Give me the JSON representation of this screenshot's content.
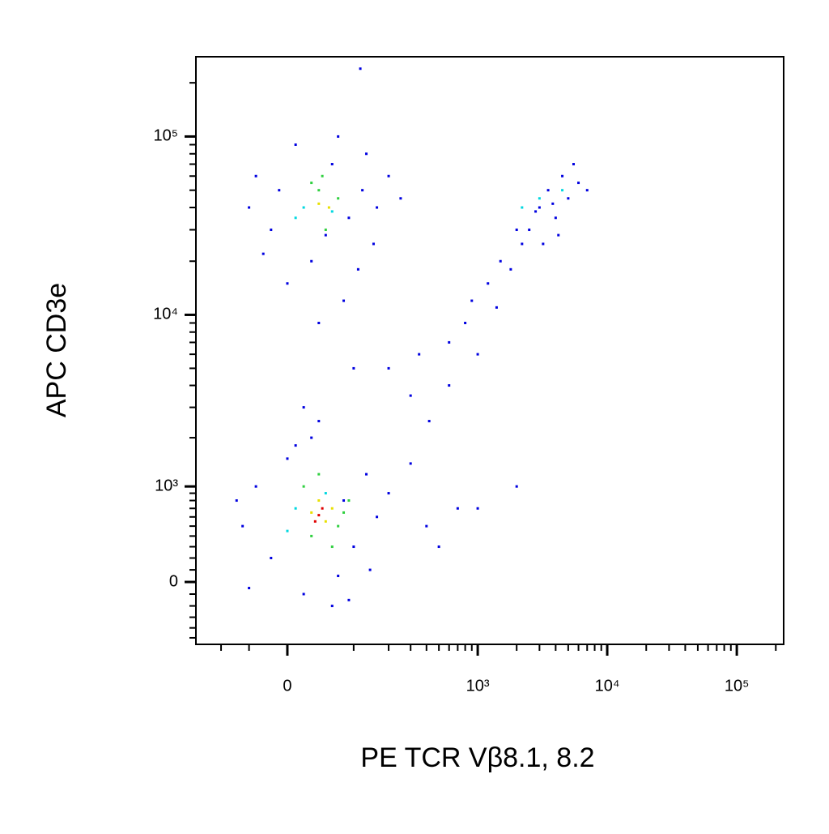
{
  "chart_data": {
    "type": "scatter",
    "xlabel": "PE TCR Vβ8.1, 8.2",
    "ylabel": "APC CD3e",
    "xscale": "biexponential",
    "yscale": "biexponential",
    "xlim": [
      -166,
      230000
    ],
    "ylim": [
      -570,
      280000
    ],
    "xticks": [
      0,
      {
        "value": 1000,
        "label": "10³"
      },
      {
        "value": 10000,
        "label": "10⁴"
      },
      {
        "value": 100000,
        "label": "10⁵"
      }
    ],
    "yticks": [
      0,
      {
        "value": 1000,
        "label": "10³"
      },
      {
        "value": 10000,
        "label": "10⁴"
      },
      {
        "value": 100000,
        "label": "10⁵"
      }
    ],
    "minor_xticks": [
      -100,
      -50,
      100,
      200,
      300,
      400,
      500,
      600,
      700,
      800,
      900,
      2000,
      3000,
      4000,
      5000,
      6000,
      7000,
      8000,
      9000,
      20000,
      30000,
      40000,
      50000,
      60000,
      70000,
      80000,
      90000,
      200000
    ],
    "minor_yticks": [
      -500,
      -400,
      -300,
      -200,
      -100,
      100,
      200,
      300,
      400,
      500,
      600,
      700,
      800,
      900,
      2000,
      3000,
      4000,
      5000,
      6000,
      7000,
      8000,
      9000,
      20000,
      30000,
      40000,
      50000,
      60000,
      70000,
      80000,
      90000,
      200000
    ],
    "series": [
      {
        "color": "#0000e0",
        "x": [
          -40,
          -20,
          10,
          30,
          60,
          90,
          120,
          150,
          -50,
          0,
          80,
          40,
          100,
          20,
          70,
          130,
          -30,
          110,
          50,
          -10,
          160,
          200,
          250,
          115,
          -60,
          -40,
          -20,
          0,
          20,
          40,
          60,
          80,
          100,
          130,
          160,
          200,
          -50,
          10,
          90,
          140,
          300,
          400,
          500,
          -70,
          30,
          70,
          200,
          350,
          300,
          600,
          1000,
          2000,
          700,
          420,
          600,
          800,
          900,
          1200,
          1500,
          1800,
          2200,
          1000,
          1400,
          2500,
          3000,
          3500,
          4000,
          4500,
          5000,
          6000,
          3200,
          2800,
          4200,
          5500,
          3800,
          7000,
          2000
        ],
        "y": [
          60000,
          30000,
          90000,
          20000,
          70000,
          35000,
          50000,
          25000,
          40000,
          15000,
          12000,
          9000,
          5000,
          3000,
          100000,
          80000,
          22000,
          18000,
          28000,
          50000,
          40000,
          60000,
          45000,
          240000,
          500,
          1000,
          200,
          1500,
          -100,
          2500,
          -200,
          800,
          300,
          1200,
          600,
          900,
          -50,
          1800,
          -150,
          100,
          1400,
          500,
          300,
          800,
          2000,
          50,
          5000,
          6000,
          3500,
          4000,
          700,
          1000,
          700,
          2500,
          7000,
          9000,
          12000,
          15000,
          20000,
          18000,
          25000,
          6000,
          11000,
          30000,
          40000,
          50000,
          35000,
          60000,
          45000,
          55000,
          25000,
          38000,
          28000,
          70000,
          42000,
          50000,
          30000
        ]
      },
      {
        "color": "#00d8e0",
        "x": [
          20,
          60,
          10,
          10,
          50,
          0,
          3000,
          4500,
          2200
        ],
        "y": [
          40000,
          38000,
          35000,
          700,
          900,
          450,
          45000,
          50000,
          40000
        ]
      },
      {
        "color": "#30d040",
        "x": [
          40,
          30,
          50,
          70,
          45,
          30,
          70,
          20,
          60,
          40,
          80,
          90
        ],
        "y": [
          50000,
          55000,
          30000,
          45000,
          60000,
          400,
          500,
          1000,
          300,
          1200,
          650,
          800
        ]
      },
      {
        "color": "#e8e000",
        "x": [
          40,
          55,
          30,
          50,
          40,
          60
        ],
        "y": [
          42000,
          40000,
          650,
          550,
          800,
          700
        ]
      },
      {
        "color": "#e00000",
        "x": [
          40,
          45,
          35
        ],
        "y": [
          620,
          700,
          550
        ]
      }
    ]
  }
}
